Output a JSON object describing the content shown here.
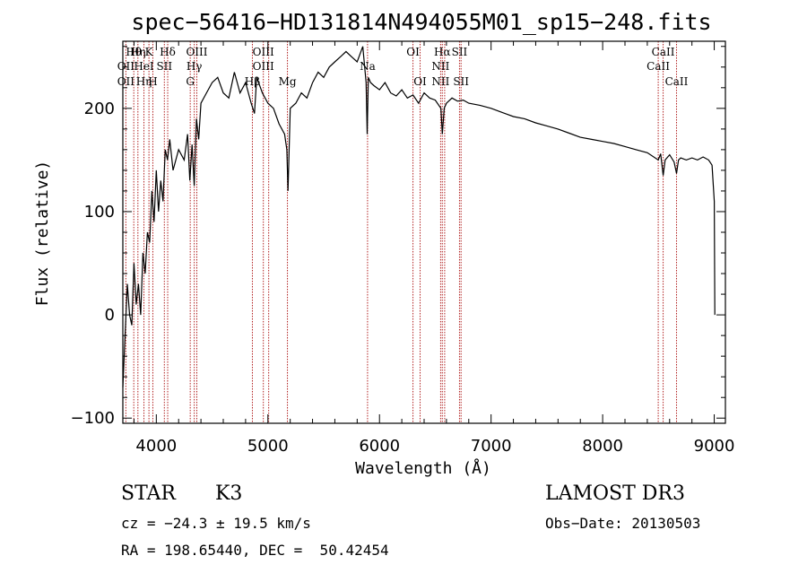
{
  "chart_data": {
    "type": "line",
    "title": "spec−56416−HD131814N494055M01_sp15−248.fits",
    "xlabel": "Wavelength (Å)",
    "ylabel": "Flux (relative)",
    "xlim": [
      3700,
      9100
    ],
    "ylim": [
      -105,
      265
    ],
    "xticks": [
      4000,
      5000,
      6000,
      7000,
      8000,
      9000
    ],
    "yticks": [
      -100,
      0,
      100,
      200
    ],
    "ytick_labels": [
      "−100",
      "0",
      "100",
      "200"
    ],
    "series": [
      {
        "x": [
          3700,
          3720,
          3740,
          3760,
          3780,
          3800,
          3820,
          3840,
          3860,
          3880,
          3900,
          3920,
          3940,
          3960,
          3980,
          4000,
          4020,
          4040,
          4060,
          4080,
          4100,
          4120,
          4150,
          4200,
          4250,
          4280,
          4300,
          4320,
          4340,
          4360,
          4380,
          4400,
          4450,
          4500,
          4550,
          4600,
          4650,
          4700,
          4750,
          4800,
          4850,
          4880,
          4900,
          4950,
          5000,
          5050,
          5100,
          5150,
          5170,
          5180,
          5200,
          5250,
          5300,
          5350,
          5400,
          5450,
          5500,
          5550,
          5600,
          5650,
          5700,
          5750,
          5800,
          5850,
          5880,
          5890,
          5900,
          5920,
          5950,
          6000,
          6050,
          6100,
          6150,
          6200,
          6250,
          6300,
          6350,
          6400,
          6450,
          6500,
          6550,
          6563,
          6580,
          6600,
          6650,
          6700,
          6750,
          6800,
          6900,
          7000,
          7100,
          7200,
          7300,
          7400,
          7500,
          7600,
          7700,
          7800,
          7900,
          8000,
          8100,
          8200,
          8300,
          8400,
          8498,
          8520,
          8542,
          8560,
          8600,
          8640,
          8662,
          8680,
          8700,
          8750,
          8800,
          8850,
          8900,
          8950,
          8980,
          9000,
          9005
        ],
        "values": [
          -70,
          -20,
          30,
          0,
          -10,
          50,
          10,
          30,
          0,
          60,
          40,
          80,
          70,
          120,
          90,
          140,
          100,
          130,
          110,
          160,
          150,
          170,
          140,
          160,
          150,
          175,
          130,
          165,
          125,
          190,
          170,
          205,
          215,
          225,
          230,
          215,
          210,
          235,
          215,
          225,
          205,
          195,
          230,
          215,
          205,
          200,
          185,
          175,
          160,
          120,
          200,
          205,
          215,
          210,
          225,
          235,
          230,
          240,
          245,
          250,
          255,
          250,
          245,
          260,
          225,
          175,
          230,
          225,
          222,
          218,
          225,
          215,
          212,
          218,
          210,
          213,
          205,
          215,
          210,
          208,
          200,
          175,
          200,
          205,
          210,
          207,
          208,
          205,
          203,
          200,
          196,
          192,
          190,
          186,
          183,
          180,
          176,
          172,
          170,
          168,
          166,
          163,
          160,
          157,
          150,
          156,
          135,
          150,
          155,
          148,
          137,
          150,
          152,
          150,
          152,
          150,
          153,
          150,
          145,
          110,
          0
        ]
      }
    ],
    "lines": [
      {
        "wl": 3727,
        "labels": [
          "",
          "OII",
          "OII"
        ]
      },
      {
        "wl": 3798,
        "labels": [
          "Hθ",
          "",
          ""
        ]
      },
      {
        "wl": 3835,
        "labels": [
          "Hη",
          "",
          ""
        ]
      },
      {
        "wl": 3889,
        "labels": [
          "",
          "HeI",
          "Hη"
        ]
      },
      {
        "wl": 3934,
        "labels": [
          "K",
          "",
          ""
        ]
      },
      {
        "wl": 3969,
        "labels": [
          "",
          "",
          "H"
        ]
      },
      {
        "wl": 4072,
        "labels": [
          "",
          "SII",
          ""
        ]
      },
      {
        "wl": 4102,
        "labels": [
          "Hδ",
          "",
          ""
        ]
      },
      {
        "wl": 4304,
        "labels": [
          "",
          "",
          "G"
        ]
      },
      {
        "wl": 4340,
        "labels": [
          "",
          "Hγ",
          ""
        ]
      },
      {
        "wl": 4363,
        "labels": [
          "OIII",
          "",
          ""
        ]
      },
      {
        "wl": 4861,
        "labels": [
          "",
          "",
          "Hβ"
        ]
      },
      {
        "wl": 4959,
        "labels": [
          "OIII",
          "OIII",
          ""
        ]
      },
      {
        "wl": 5007,
        "labels": [
          "",
          "",
          ""
        ]
      },
      {
        "wl": 5175,
        "labels": [
          "",
          "",
          "Mg"
        ]
      },
      {
        "wl": 5893,
        "labels": [
          "",
          "Na",
          ""
        ]
      },
      {
        "wl": 6300,
        "labels": [
          "OI",
          "",
          ""
        ]
      },
      {
        "wl": 6364,
        "labels": [
          "",
          "",
          "OI"
        ]
      },
      {
        "wl": 6548,
        "labels": [
          "",
          "NII",
          "NII"
        ]
      },
      {
        "wl": 6563,
        "labels": [
          "Hα",
          "",
          ""
        ]
      },
      {
        "wl": 6584,
        "labels": [
          "",
          "",
          ""
        ]
      },
      {
        "wl": 6717,
        "labels": [
          "SII",
          "",
          ""
        ]
      },
      {
        "wl": 6731,
        "labels": [
          "",
          "",
          "SII"
        ]
      },
      {
        "wl": 8498,
        "labels": [
          "",
          "CaII",
          ""
        ]
      },
      {
        "wl": 8542,
        "labels": [
          "CaII",
          "",
          ""
        ]
      },
      {
        "wl": 8662,
        "labels": [
          "",
          "",
          "CaII"
        ]
      }
    ],
    "line_color": "#b22222",
    "grid": false
  },
  "info": {
    "object_class": "STAR",
    "subclass": "K3",
    "survey": "LAMOST DR3",
    "cz": "cz = −24.3 ± 19.5 km/s",
    "obs_date": "Obs−Date: 20130503",
    "coords": "RA = 198.65440, DEC =  50.42454"
  }
}
